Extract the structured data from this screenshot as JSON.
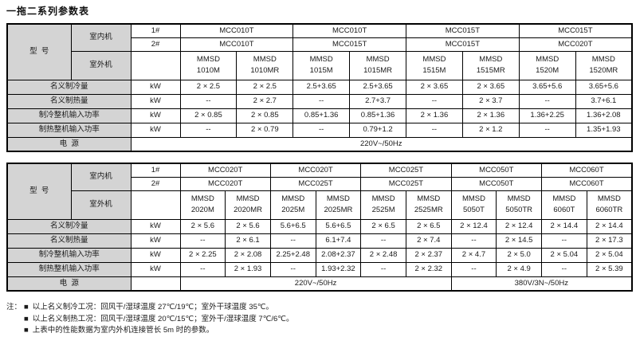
{
  "page_title": "一拖二系列参数表",
  "colors": {
    "header_bg": "#d4d4d4",
    "border": "#000000",
    "text": "#1a1a1a"
  },
  "labels": {
    "model": "型  号",
    "indoor_unit": "室内机",
    "outdoor_unit": "室外机",
    "indoor_1": "1#",
    "indoor_2": "2#",
    "power": "电  源",
    "note_prefix": "注：",
    "bullet": "■"
  },
  "tables": [
    {
      "indoor_1_models": [
        "MCC010T",
        "MCC010T",
        "MCC015T",
        "MCC015T"
      ],
      "indoor_2_models": [
        "MCC010T",
        "MCC015T",
        "MCC015T",
        "MCC020T"
      ],
      "outdoor_models": [
        "MMSD 1010M",
        "MMSD 1010MR",
        "MMSD 1015M",
        "MMSD 1015MR",
        "MMSD 1515M",
        "MMSD 1515MR",
        "MMSD 1520M",
        "MMSD 1520MR"
      ],
      "spec_rows": [
        {
          "label": "名义制冷量",
          "unit": "kW",
          "values": [
            "2 × 2.5",
            "2 × 2.5",
            "2.5+3.65",
            "2.5+3.65",
            "2 × 3.65",
            "2 × 3.65",
            "3.65+5.6",
            "3.65+5.6"
          ]
        },
        {
          "label": "名义制热量",
          "unit": "kW",
          "values": [
            "--",
            "2 × 2.7",
            "--",
            "2.7+3.7",
            "--",
            "2 × 3.7",
            "--",
            "3.7+6.1"
          ]
        },
        {
          "label": "制冷整机输入功率",
          "unit": "kW",
          "values": [
            "2 × 0.85",
            "2 × 0.85",
            "0.85+1.36",
            "0.85+1.36",
            "2 × 1.36",
            "2 × 1.36",
            "1.36+2.25",
            "1.36+2.08"
          ]
        },
        {
          "label": "制热整机输入功率",
          "unit": "kW",
          "values": [
            "--",
            "2 × 0.79",
            "--",
            "0.79+1.2",
            "--",
            "2 × 1.2",
            "--",
            "1.35+1.93"
          ]
        }
      ],
      "power_row": [
        {
          "text": "220V~/50Hz",
          "colspan": 9
        }
      ]
    },
    {
      "indoor_1_models": [
        "MCC020T",
        "MCC020T",
        "MCC025T",
        "MCC050T",
        "MCC060T"
      ],
      "indoor_2_models": [
        "MCC020T",
        "MCC025T",
        "MCC025T",
        "MCC050T",
        "MCC060T"
      ],
      "outdoor_models": [
        "MMSD 2020M",
        "MMSD 2020MR",
        "MMSD 2025M",
        "MMSD 2025MR",
        "MMSD 2525M",
        "MMSD 2525MR",
        "MMSD 5050T",
        "MMSD 5050TR",
        "MMSD 6060T",
        "MMSD 6060TR"
      ],
      "spec_rows": [
        {
          "label": "名义制冷量",
          "unit": "kW",
          "values": [
            "2 × 5.6",
            "2 × 5.6",
            "5.6+6.5",
            "5.6+6.5",
            "2 × 6.5",
            "2 × 6.5",
            "2 × 12.4",
            "2 × 12.4",
            "2 × 14.4",
            "2 × 14.4"
          ]
        },
        {
          "label": "名义制热量",
          "unit": "kW",
          "values": [
            "--",
            "2 × 6.1",
            "--",
            "6.1+7.4",
            "--",
            "2 × 7.4",
            "--",
            "2 × 14.5",
            "--",
            "2 × 17.3"
          ]
        },
        {
          "label": "制冷整机输入功率",
          "unit": "kW",
          "values": [
            "2 × 2.25",
            "2 × 2.08",
            "2.25+2.48",
            "2.08+2.37",
            "2 × 2.48",
            "2 × 2.37",
            "2 × 4.7",
            "2 × 5.0",
            "2 × 5.04",
            "2 × 5.04"
          ]
        },
        {
          "label": "制热整机输入功率",
          "unit": "kW",
          "values": [
            "--",
            "2 × 1.93",
            "--",
            "1.93+2.32",
            "--",
            "2 × 2.32",
            "--",
            "2 × 4.9",
            "--",
            "2 × 5.39"
          ]
        }
      ],
      "power_row": [
        {
          "text": "",
          "colspan": 1
        },
        {
          "text": "220V~/50Hz",
          "colspan": 6
        },
        {
          "text": "380V/3N~/50Hz",
          "colspan": 4
        }
      ]
    }
  ],
  "notes": [
    "以上名义制冷工况：回风干/湿球温度 27℃/19℃；室外干球温度 35℃。",
    "以上名义制热工况：回风干/湿球温度 20℃/15℃；室外干/湿球温度 7℃/6℃。",
    "上表中的性能数据为室内外机连接管长 5m 时的参数。"
  ]
}
